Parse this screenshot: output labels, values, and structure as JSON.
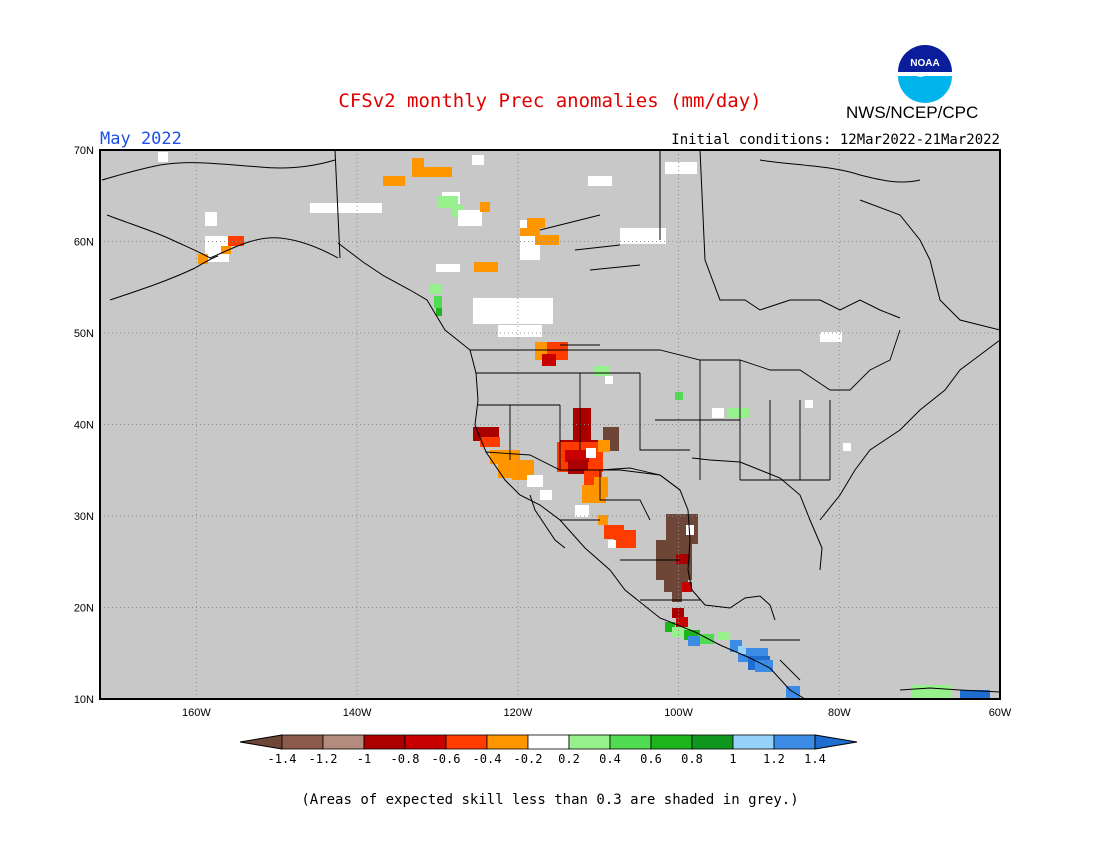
{
  "title": "CFSv2 monthly Prec anomalies (mm/day)",
  "period_label": "May 2022",
  "initial_conditions": "Initial conditions: 12Mar2022-21Mar2022",
  "agency_label": "NWS/NCEP/CPC",
  "logo_text": "NOAA",
  "footnote": "(Areas of expected skill less than 0.3 are shaded in grey.)",
  "map": {
    "lon_range": [
      -172,
      -60
    ],
    "lat_range": [
      10,
      70
    ],
    "lat_labels": [
      "70N",
      "60N",
      "50N",
      "40N",
      "30N",
      "20N",
      "10N"
    ],
    "lon_labels": [
      "160W",
      "140W",
      "120W",
      "100W",
      "80W",
      "60W"
    ],
    "grey_color": "#c8c8c8"
  },
  "colorbar": {
    "tick_labels": [
      "-1.4",
      "-1.2",
      "-1",
      "-0.8",
      "-0.6",
      "-0.4",
      "-0.2",
      "0.2",
      "0.4",
      "0.6",
      "0.8",
      "1",
      "1.2",
      "1.4"
    ],
    "colors": [
      "#6e4638",
      "#8c5a4b",
      "#b48c7d",
      "#aa0000",
      "#c80000",
      "#ff3c00",
      "#ff9600",
      "#ffffff",
      "#96f08c",
      "#50dc50",
      "#1eb41e",
      "#0f961e",
      "#96d2fa",
      "#3c8ce6",
      "#1e6ed2"
    ]
  }
}
